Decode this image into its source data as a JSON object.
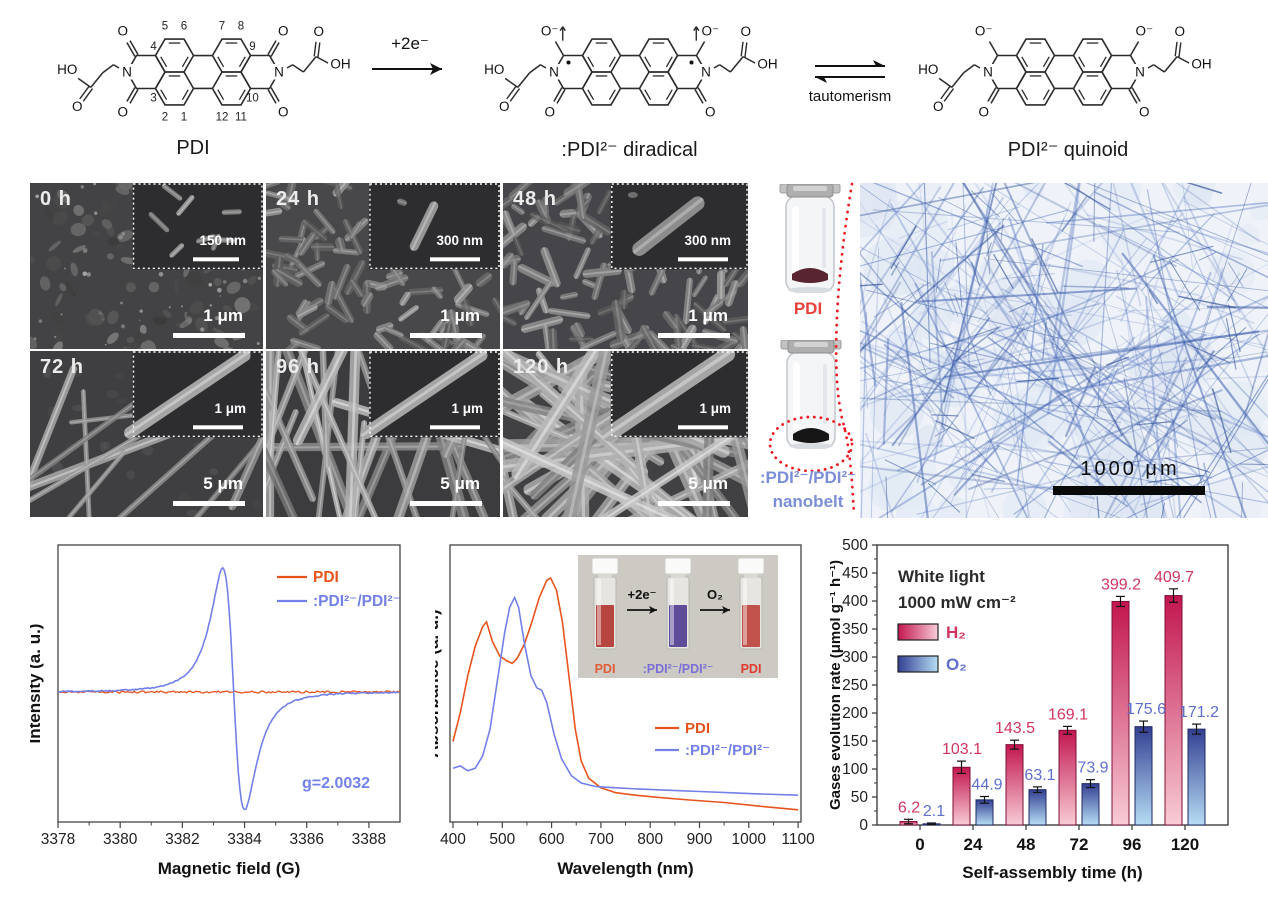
{
  "figure": {
    "reaction_scheme": {
      "arrow_label": "+2e⁻",
      "equilibrium_label": "tautomerism",
      "structures": [
        {
          "caption": "PDI",
          "top_o": "O",
          "bottom_o": "O",
          "top_double": true,
          "radicals": false,
          "atoms": {
            "n": "N",
            "ho": "HO",
            "oh": "OH",
            "o": "O"
          },
          "numbers": {
            "top": [
              "5",
              "6",
              "7",
              "8"
            ],
            "bottom": [
              "2",
              "1",
              "12",
              "11"
            ],
            "corners": {
              "lt": "4",
              "lb": "3",
              "rt": "9",
              "rb": "10"
            }
          }
        },
        {
          "caption": ":PDI²⁻ diradical",
          "top_o": "O⁻",
          "bottom_o": "O",
          "top_double": false,
          "radicals": true,
          "atoms": {
            "n": "N",
            "ho": "HO",
            "oh": "OH",
            "o": "O"
          }
        },
        {
          "caption": "PDI²⁻ quinoid",
          "top_o": "O⁻",
          "bottom_o": "O",
          "top_double": false,
          "radicals": false,
          "atoms": {
            "n": "N",
            "ho": "HO",
            "oh": "OH",
            "o": "O"
          }
        }
      ]
    },
    "sem_panels": [
      {
        "time": "0 h",
        "inset_scale": "150 nm",
        "main_scale": "1 μm",
        "morphology": "particles"
      },
      {
        "time": "24 h",
        "inset_scale": "300 nm",
        "main_scale": "1 μm",
        "morphology": "short-rods"
      },
      {
        "time": "48 h",
        "inset_scale": "300 nm",
        "main_scale": "1 μm",
        "morphology": "rods"
      },
      {
        "time": "72 h",
        "inset_scale": "1 μm",
        "main_scale": "5 μm",
        "morphology": "sparse-belts"
      },
      {
        "time": "96 h",
        "inset_scale": "1 μm",
        "main_scale": "5 μm",
        "morphology": "belts"
      },
      {
        "time": "120 h",
        "inset_scale": "1 μm",
        "main_scale": "5 μm",
        "morphology": "dense-belts"
      }
    ],
    "vials": {
      "top_label": "PDI",
      "top_label_color": "#e8413c",
      "bottom_label_line1": ":PDI²⁻/PDI²⁻",
      "bottom_label_line2": "nanobelt",
      "bottom_label_color": "#7b8fd9",
      "top_powder_color": "#57242f",
      "bottom_powder_color": "#161616",
      "connector_color": "#ec1b23"
    },
    "optical": {
      "scale_label": "1000 μm"
    }
  },
  "chart_data": [
    {
      "id": "epr",
      "type": "line",
      "xlabel": "Magnetic field (G)",
      "ylabel": "Intensity (a. u.)",
      "xlim": [
        3378,
        3389
      ],
      "xticks": [
        3378,
        3380,
        3382,
        3384,
        3386,
        3388
      ],
      "legend_position": "top-right",
      "annotation": {
        "text": "g=2.0032",
        "color": "#7380e8"
      },
      "series": [
        {
          "name": "PDI",
          "color": "#e8541e",
          "profile": "flat-baseline"
        },
        {
          "name": ":PDI²⁻/PDI²⁻",
          "color": "#7380e8",
          "profile": "lorentzian-derivative",
          "center_G": 3383.65,
          "width_G": 0.606,
          "peak_G": 3383.3,
          "trough_G": 3384.0
        }
      ]
    },
    {
      "id": "uvvis",
      "type": "line",
      "xlabel": "Wavelength (nm)",
      "ylabel": "Absorbance (a. u.)",
      "xlim": [
        400,
        1106
      ],
      "xticks": [
        400,
        500,
        600,
        700,
        800,
        900,
        1000,
        1100
      ],
      "legend_position": "middle-right",
      "inset": {
        "cuvette_labels": [
          {
            "text": "PDI",
            "color": "#e05c35"
          },
          {
            "text": ":PDI²⁻/PDI²⁻",
            "color": "#7a6fd8"
          },
          {
            "text": "PDI",
            "color": "#e03a2f"
          }
        ],
        "arrow_labels": [
          "+2e⁻",
          "O₂"
        ],
        "liquid_colors": [
          "#b5453e",
          "#5f4d99",
          "#c0524a"
        ]
      },
      "series": [
        {
          "name": "PDI",
          "color": "#e8541e",
          "points": [
            [
              400,
              0.33
            ],
            [
              415,
              0.45
            ],
            [
              430,
              0.6
            ],
            [
              445,
              0.72
            ],
            [
              460,
              0.8
            ],
            [
              468,
              0.82
            ],
            [
              480,
              0.74
            ],
            [
              495,
              0.68
            ],
            [
              510,
              0.66
            ],
            [
              520,
              0.65
            ],
            [
              530,
              0.67
            ],
            [
              545,
              0.73
            ],
            [
              560,
              0.82
            ],
            [
              575,
              0.92
            ],
            [
              590,
              0.99
            ],
            [
              598,
              1.0
            ],
            [
              610,
              0.95
            ],
            [
              622,
              0.82
            ],
            [
              635,
              0.6
            ],
            [
              648,
              0.38
            ],
            [
              660,
              0.25
            ],
            [
              675,
              0.18
            ],
            [
              700,
              0.14
            ],
            [
              730,
              0.12
            ],
            [
              770,
              0.11
            ],
            [
              820,
              0.1
            ],
            [
              880,
              0.09
            ],
            [
              950,
              0.08
            ],
            [
              1020,
              0.065
            ],
            [
              1100,
              0.05
            ]
          ]
        },
        {
          "name": ":PDI²⁻/PDI²⁻",
          "color": "#7380e8",
          "points": [
            [
              400,
              0.22
            ],
            [
              415,
              0.23
            ],
            [
              430,
              0.21
            ],
            [
              445,
              0.22
            ],
            [
              460,
              0.27
            ],
            [
              475,
              0.38
            ],
            [
              490,
              0.58
            ],
            [
              505,
              0.78
            ],
            [
              515,
              0.88
            ],
            [
              525,
              0.92
            ],
            [
              533,
              0.88
            ],
            [
              545,
              0.73
            ],
            [
              558,
              0.6
            ],
            [
              570,
              0.55
            ],
            [
              580,
              0.54
            ],
            [
              590,
              0.49
            ],
            [
              605,
              0.36
            ],
            [
              620,
              0.26
            ],
            [
              640,
              0.19
            ],
            [
              660,
              0.16
            ],
            [
              690,
              0.145
            ],
            [
              730,
              0.14
            ],
            [
              780,
              0.135
            ],
            [
              840,
              0.13
            ],
            [
              900,
              0.125
            ],
            [
              960,
              0.12
            ],
            [
              1020,
              0.115
            ],
            [
              1100,
              0.11
            ]
          ]
        }
      ]
    },
    {
      "id": "gas-evolution",
      "type": "bar",
      "xlabel": "Self-assembly time (h)",
      "ylabel": "Gases evolution rate (μmol g⁻¹ h⁻¹)",
      "categories": [
        "0",
        "24",
        "48",
        "72",
        "96",
        "120"
      ],
      "ylim": [
        0,
        500
      ],
      "ytick_step": 50,
      "annotations": [
        "White light",
        "1000 mW cm⁻²"
      ],
      "series": [
        {
          "name": "H₂",
          "values": [
            6.2,
            103.1,
            143.5,
            169.1,
            399.2,
            409.7
          ],
          "errors": [
            4,
            11,
            8,
            7,
            9,
            12
          ],
          "label_color": "#d2355f",
          "gradient": [
            "#c2164f",
            "#f8ccd6"
          ],
          "stroke": "#7e0f35"
        },
        {
          "name": "O₂",
          "values": [
            2.1,
            44.9,
            63.1,
            73.9,
            175.6,
            171.2
          ],
          "errors": [
            1.5,
            6,
            5,
            7,
            10,
            9
          ],
          "label_color": "#5f6fd0",
          "gradient": [
            "#333f92",
            "#b6ddf4"
          ],
          "stroke": "#1f2a66"
        }
      ]
    }
  ]
}
